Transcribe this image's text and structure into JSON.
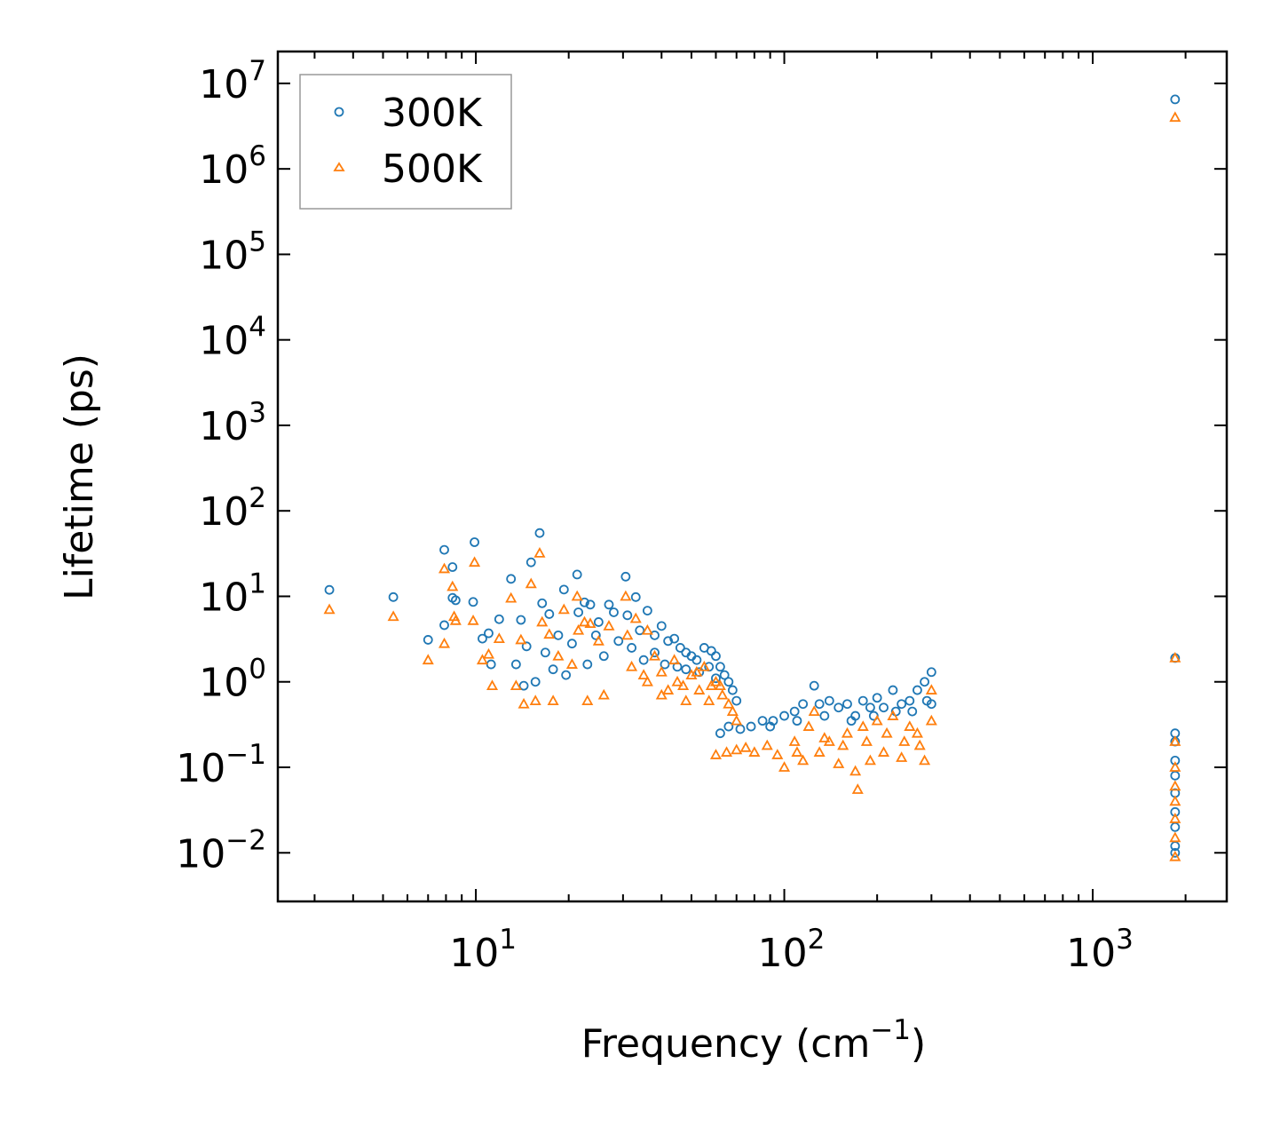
{
  "chart_data": {
    "type": "scatter",
    "title": "",
    "xlabel": "Frequency (cm",
    "xlabel_sup": "−1",
    "xlabel_end": ")",
    "ylabel": "Lifetime (ps)",
    "xscale": "log",
    "yscale": "log",
    "xlim": [
      2.28,
      2720
    ],
    "ylim": [
      0.0027,
      23600000
    ],
    "grid": false,
    "legend_position": "top-left",
    "x_ticks": [
      {
        "value": 10,
        "base": "10",
        "exp": "1"
      },
      {
        "value": 100,
        "base": "10",
        "exp": "2"
      },
      {
        "value": 1000,
        "base": "10",
        "exp": "3"
      }
    ],
    "y_ticks": [
      {
        "value": 0.01,
        "base": "10",
        "exp": "−2"
      },
      {
        "value": 0.1,
        "base": "10",
        "exp": "−1"
      },
      {
        "value": 1,
        "base": "10",
        "exp": "0"
      },
      {
        "value": 10,
        "base": "10",
        "exp": "1"
      },
      {
        "value": 100,
        "base": "10",
        "exp": "2"
      },
      {
        "value": 1000,
        "base": "10",
        "exp": "3"
      },
      {
        "value": 10000,
        "base": "10",
        "exp": "4"
      },
      {
        "value": 100000,
        "base": "10",
        "exp": "5"
      },
      {
        "value": 1000000,
        "base": "10",
        "exp": "6"
      },
      {
        "value": 10000000,
        "base": "10",
        "exp": "7"
      }
    ],
    "series": [
      {
        "name": "300K",
        "marker": "circle",
        "color": "#1f77b4",
        "points": [
          [
            3.35,
            11.9
          ],
          [
            5.4,
            9.8
          ],
          [
            7.0,
            3.1
          ],
          [
            7.9,
            35
          ],
          [
            8.4,
            22
          ],
          [
            8.4,
            9.6
          ],
          [
            8.6,
            9.0
          ],
          [
            7.9,
            4.6
          ],
          [
            9.9,
            43
          ],
          [
            9.8,
            8.6
          ],
          [
            10.5,
            3.2
          ],
          [
            11.0,
            3.7
          ],
          [
            11.2,
            1.6
          ],
          [
            11.9,
            5.4
          ],
          [
            13.0,
            16
          ],
          [
            13.5,
            1.6
          ],
          [
            14.0,
            5.3
          ],
          [
            14.3,
            0.9
          ],
          [
            14.6,
            2.6
          ],
          [
            15.1,
            25
          ],
          [
            15.6,
            1.0
          ],
          [
            16.1,
            55
          ],
          [
            16.4,
            8.3
          ],
          [
            16.8,
            2.2
          ],
          [
            17.3,
            6.2
          ],
          [
            17.8,
            1.4
          ],
          [
            18.5,
            3.5
          ],
          [
            19.3,
            12
          ],
          [
            19.6,
            1.2
          ],
          [
            20.5,
            2.8
          ],
          [
            21.3,
            18
          ],
          [
            21.5,
            6.5
          ],
          [
            22.5,
            8.5
          ],
          [
            23.0,
            1.6
          ],
          [
            23.5,
            8
          ],
          [
            24.5,
            3.5
          ],
          [
            25,
            5
          ],
          [
            26,
            2.0
          ],
          [
            27,
            8
          ],
          [
            28,
            6.5
          ],
          [
            29,
            3
          ],
          [
            30.6,
            17
          ],
          [
            31,
            6
          ],
          [
            32,
            2.5
          ],
          [
            33,
            9.8
          ],
          [
            34,
            4
          ],
          [
            35,
            1.8
          ],
          [
            36,
            6.8
          ],
          [
            38,
            3.5
          ],
          [
            38,
            2.2
          ],
          [
            40,
            4.5
          ],
          [
            41,
            1.6
          ],
          [
            42,
            3
          ],
          [
            44,
            3.2
          ],
          [
            45,
            1.5
          ],
          [
            46,
            2.5
          ],
          [
            48,
            2.2
          ],
          [
            48,
            1.4
          ],
          [
            50,
            2.0
          ],
          [
            52,
            1.8
          ],
          [
            53,
            1.3
          ],
          [
            55,
            2.5
          ],
          [
            57,
            1.5
          ],
          [
            58,
            2.3
          ],
          [
            60,
            2.0
          ],
          [
            60,
            1.1
          ],
          [
            62,
            1.5
          ],
          [
            64,
            1.2
          ],
          [
            66,
            1.0
          ],
          [
            68,
            0.8
          ],
          [
            70,
            0.6
          ],
          [
            62,
            0.25
          ],
          [
            66,
            0.3
          ],
          [
            72,
            0.28
          ],
          [
            78,
            0.3
          ],
          [
            85,
            0.35
          ],
          [
            90,
            0.3
          ],
          [
            92,
            0.35
          ],
          [
            100,
            0.4
          ],
          [
            108,
            0.45
          ],
          [
            110,
            0.35
          ],
          [
            115,
            0.55
          ],
          [
            125,
            0.9
          ],
          [
            130,
            0.55
          ],
          [
            135,
            0.4
          ],
          [
            140,
            0.6
          ],
          [
            150,
            0.5
          ],
          [
            160,
            0.55
          ],
          [
            165,
            0.35
          ],
          [
            170,
            0.4
          ],
          [
            180,
            0.6
          ],
          [
            190,
            0.5
          ],
          [
            195,
            0.4
          ],
          [
            200,
            0.65
          ],
          [
            210,
            0.5
          ],
          [
            225,
            0.8
          ],
          [
            230,
            0.45
          ],
          [
            240,
            0.55
          ],
          [
            255,
            0.6
          ],
          [
            260,
            0.45
          ],
          [
            270,
            0.8
          ],
          [
            285,
            1.0
          ],
          [
            290,
            0.6
          ],
          [
            300,
            1.3
          ],
          [
            300,
            0.55
          ],
          [
            1850,
            6500000
          ],
          [
            1850,
            1.9
          ],
          [
            1850,
            0.25
          ],
          [
            1850,
            0.2
          ],
          [
            1850,
            0.12
          ],
          [
            1850,
            0.08
          ],
          [
            1850,
            0.05
          ],
          [
            1850,
            0.03
          ],
          [
            1850,
            0.02
          ],
          [
            1850,
            0.012
          ],
          [
            1850,
            0.01
          ]
        ]
      },
      {
        "name": "500K",
        "marker": "triangle",
        "color": "#ff7f0e",
        "points": [
          [
            3.35,
            7
          ],
          [
            5.4,
            5.8
          ],
          [
            7.0,
            1.8
          ],
          [
            7.9,
            21
          ],
          [
            8.4,
            13
          ],
          [
            8.5,
            5.8
          ],
          [
            8.6,
            5.2
          ],
          [
            7.9,
            2.8
          ],
          [
            9.9,
            25
          ],
          [
            9.8,
            5.2
          ],
          [
            10.5,
            1.8
          ],
          [
            11.0,
            2.1
          ],
          [
            11.3,
            0.9
          ],
          [
            11.9,
            3.2
          ],
          [
            13.0,
            9.5
          ],
          [
            13.5,
            0.9
          ],
          [
            14.0,
            3.1
          ],
          [
            14.3,
            0.55
          ],
          [
            15.1,
            14
          ],
          [
            15.6,
            0.6
          ],
          [
            16.1,
            32
          ],
          [
            16.4,
            5
          ],
          [
            17.3,
            3.6
          ],
          [
            17.8,
            0.6
          ],
          [
            18.5,
            2
          ],
          [
            19.3,
            7
          ],
          [
            20.5,
            1.6
          ],
          [
            21.3,
            10
          ],
          [
            21.5,
            4
          ],
          [
            22.5,
            5
          ],
          [
            23,
            0.6
          ],
          [
            23.5,
            4.8
          ],
          [
            25,
            3
          ],
          [
            26,
            0.7
          ],
          [
            27,
            4.5
          ],
          [
            30.6,
            10
          ],
          [
            31,
            3.5
          ],
          [
            32,
            1.5
          ],
          [
            33,
            5.5
          ],
          [
            35,
            1.2
          ],
          [
            36,
            4
          ],
          [
            36,
            1.0
          ],
          [
            38,
            2
          ],
          [
            40,
            1.3
          ],
          [
            40,
            0.7
          ],
          [
            42,
            0.8
          ],
          [
            44,
            1.8
          ],
          [
            45,
            1.0
          ],
          [
            47,
            0.9
          ],
          [
            48,
            0.6
          ],
          [
            50,
            1.2
          ],
          [
            52,
            1.3
          ],
          [
            53,
            0.8
          ],
          [
            55,
            1.5
          ],
          [
            57,
            0.6
          ],
          [
            58,
            0.9
          ],
          [
            60,
            1.0
          ],
          [
            62,
            0.9
          ],
          [
            63,
            0.7
          ],
          [
            66,
            0.55
          ],
          [
            68,
            0.45
          ],
          [
            70,
            0.35
          ],
          [
            60,
            0.14
          ],
          [
            65,
            0.15
          ],
          [
            70,
            0.16
          ],
          [
            75,
            0.17
          ],
          [
            80,
            0.15
          ],
          [
            88,
            0.18
          ],
          [
            95,
            0.14
          ],
          [
            100,
            0.1
          ],
          [
            108,
            0.2
          ],
          [
            110,
            0.15
          ],
          [
            115,
            0.12
          ],
          [
            120,
            0.3
          ],
          [
            125,
            0.45
          ],
          [
            130,
            0.15
          ],
          [
            135,
            0.22
          ],
          [
            140,
            0.2
          ],
          [
            150,
            0.11
          ],
          [
            155,
            0.18
          ],
          [
            160,
            0.25
          ],
          [
            170,
            0.09
          ],
          [
            173,
            0.055
          ],
          [
            180,
            0.3
          ],
          [
            185,
            0.2
          ],
          [
            190,
            0.12
          ],
          [
            200,
            0.35
          ],
          [
            210,
            0.15
          ],
          [
            215,
            0.25
          ],
          [
            225,
            0.4
          ],
          [
            240,
            0.13
          ],
          [
            245,
            0.2
          ],
          [
            255,
            0.3
          ],
          [
            270,
            0.25
          ],
          [
            275,
            0.18
          ],
          [
            285,
            0.12
          ],
          [
            300,
            0.8
          ],
          [
            300,
            0.35
          ],
          [
            1850,
            4000000
          ],
          [
            1850,
            1.9
          ],
          [
            1850,
            0.2
          ],
          [
            1850,
            0.1
          ],
          [
            1850,
            0.06
          ],
          [
            1850,
            0.04
          ],
          [
            1850,
            0.025
          ],
          [
            1850,
            0.015
          ],
          [
            1850,
            0.009
          ]
        ]
      }
    ]
  }
}
